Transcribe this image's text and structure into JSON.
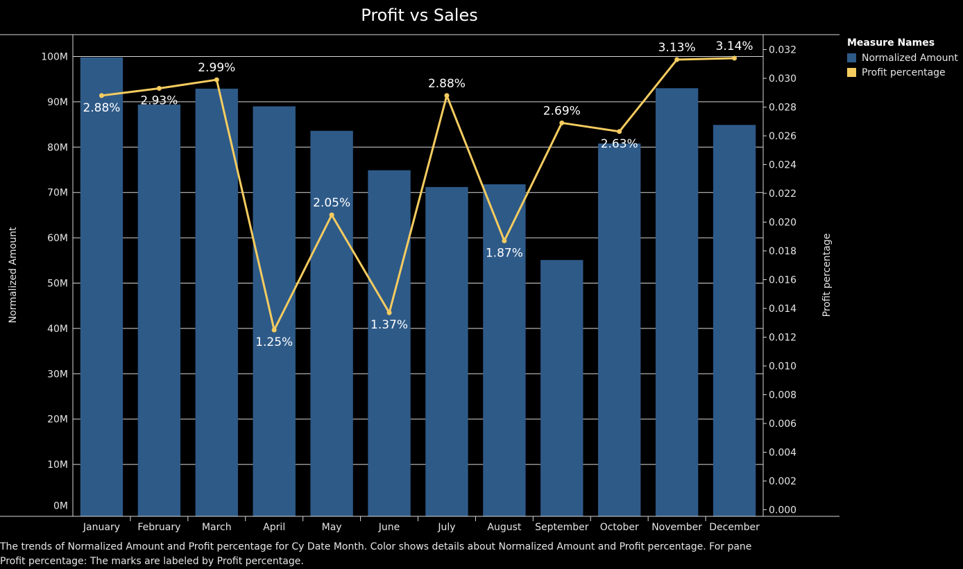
{
  "title": "Profit vs Sales",
  "chart_data": {
    "type": "bar",
    "categories": [
      "January",
      "February",
      "March",
      "April",
      "May",
      "June",
      "July",
      "August",
      "September",
      "October",
      "November",
      "December"
    ],
    "series": [
      {
        "name": "Normalized Amount",
        "type": "bar",
        "axis": "left",
        "color": "#2e5a88",
        "values": [
          99.8,
          89.4,
          92.9,
          89.0,
          83.6,
          74.9,
          71.2,
          71.8,
          55.1,
          80.8,
          93.0,
          84.9
        ]
      },
      {
        "name": "Profit percentage",
        "type": "line",
        "axis": "right",
        "color": "#f5cc60",
        "values": [
          0.0288,
          0.0293,
          0.0299,
          0.0125,
          0.0205,
          0.0137,
          0.0288,
          0.0187,
          0.0269,
          0.0263,
          0.0313,
          0.0314
        ],
        "labels": [
          "2.88%",
          "2.93%",
          "2.99%",
          "1.25%",
          "2.05%",
          "1.37%",
          "2.88%",
          "1.87%",
          "2.69%",
          "2.63%",
          "3.13%",
          "3.14%"
        ]
      }
    ],
    "ylabel": "Normalized Amount",
    "ylim": [
      0,
      100
    ],
    "yticks": [
      "0M",
      "10M",
      "20M",
      "30M",
      "40M",
      "50M",
      "60M",
      "70M",
      "80M",
      "90M",
      "100M"
    ],
    "y2label": "Profit percentage",
    "y2lim": [
      0,
      0.032
    ],
    "y2ticks": [
      "0.000",
      "0.002",
      "0.004",
      "0.006",
      "0.008",
      "0.010",
      "0.012",
      "0.014",
      "0.016",
      "0.018",
      "0.020",
      "0.022",
      "0.024",
      "0.026",
      "0.028",
      "0.030",
      "0.032"
    ],
    "grid": true,
    "legend_position": "right"
  },
  "legend": {
    "title": "Measure Names",
    "items": [
      {
        "label": "Normalized Amount",
        "color": "#2e5a88"
      },
      {
        "label": "Profit percentage",
        "color": "#f5cc60"
      }
    ]
  },
  "caption": "The trends of Normalized Amount and Profit percentage for Cy Date Month.  Color shows details about Normalized Amount and Profit percentage.  For pane Profit percentage:  The marks are labeled by Profit percentage."
}
